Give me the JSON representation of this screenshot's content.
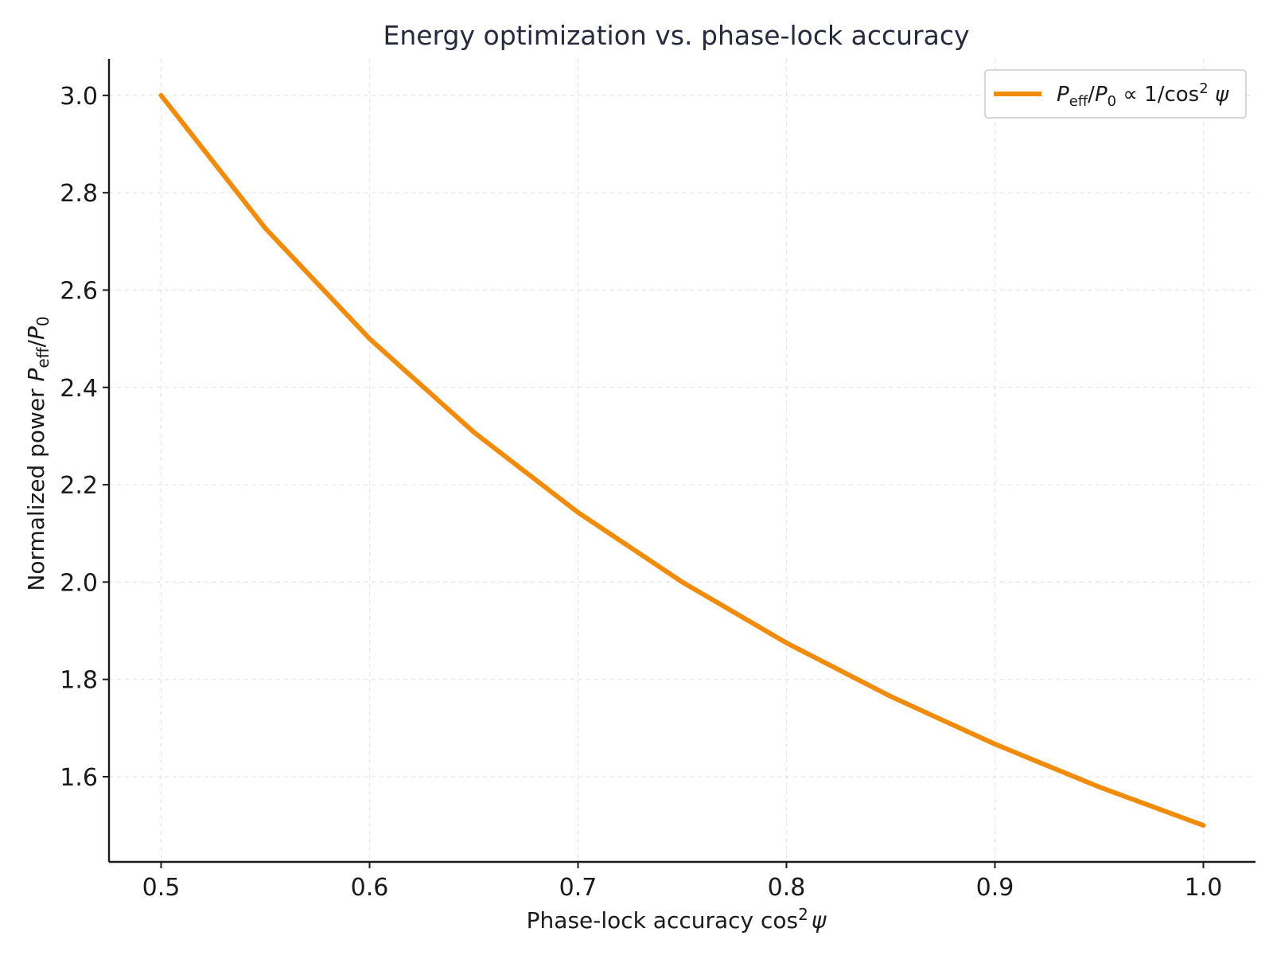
{
  "chart_data": {
    "type": "line",
    "title": "Energy optimization vs. phase-lock accuracy",
    "xlabel": {
      "text": "Phase-lock accuracy cos",
      "sup": "2",
      "var": "ψ"
    },
    "ylabel": {
      "text": "Normalized power ",
      "var_p": "P",
      "sub_eff": "eff",
      "slash": "/",
      "var_p0": "P",
      "sub_0": "0"
    },
    "legend": {
      "position": "top-right",
      "label": {
        "p": "P",
        "eff": "eff",
        "slash": "/",
        "p0": "P",
        "zero": "0",
        "rel": " ∝ 1/cos",
        "two": "2",
        "psi": " ψ"
      }
    },
    "xlim": [
      0.475,
      1.025
    ],
    "ylim": [
      1.425,
      3.075
    ],
    "x_ticks": [
      0.5,
      0.6,
      0.7,
      0.8,
      0.9,
      1.0
    ],
    "x_tick_labels": [
      "0.5",
      "0.6",
      "0.7",
      "0.8",
      "0.9",
      "1.0"
    ],
    "y_ticks": [
      1.6,
      1.8,
      2.0,
      2.2,
      2.4,
      2.6,
      2.8,
      3.0
    ],
    "y_tick_labels": [
      "1.6",
      "1.8",
      "2.0",
      "2.2",
      "2.4",
      "2.6",
      "2.8",
      "3.0"
    ],
    "grid": true,
    "series": [
      {
        "color": "#f08c0a",
        "x": [
          0.5,
          0.55,
          0.6,
          0.65,
          0.7,
          0.75,
          0.8,
          0.85,
          0.9,
          0.95,
          1.0
        ],
        "y": [
          3.0,
          2.727,
          2.5,
          2.308,
          2.143,
          2.0,
          1.875,
          1.765,
          1.667,
          1.579,
          1.5
        ]
      }
    ]
  }
}
